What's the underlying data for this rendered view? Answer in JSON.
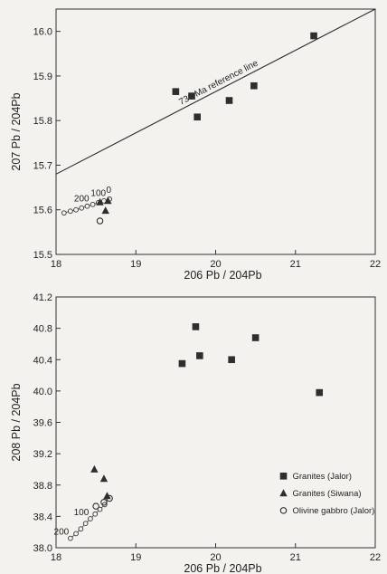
{
  "chart_data": [
    {
      "type": "scatter",
      "xlabel": "206 Pb / 204Pb",
      "ylabel": "207 Pb / 204Pb",
      "xlim": [
        18,
        22
      ],
      "ylim": [
        15.5,
        16.05
      ],
      "xticks": [
        "18",
        "19",
        "20",
        "21",
        "22"
      ],
      "yticks": [
        "15.5",
        "15.6",
        "15.7",
        "15.8",
        "15.9",
        "16.0"
      ],
      "reference_line": {
        "label": "736 Ma reference line",
        "from": [
          18,
          15.68
        ],
        "to": [
          22,
          16.05
        ]
      },
      "growth_curve": {
        "x": [
          18.1,
          18.18,
          18.25,
          18.32,
          18.39,
          18.46,
          18.53,
          18.6,
          18.67
        ],
        "y": [
          15.593,
          15.597,
          15.6,
          15.604,
          15.608,
          15.612,
          15.616,
          15.62,
          15.624
        ],
        "labels": [
          {
            "text": "200",
            "x": 18.32
          },
          {
            "text": "100",
            "x": 18.53
          },
          {
            "text": "0",
            "x": 18.66
          }
        ]
      },
      "series": [
        {
          "marker": "square",
          "x": [
            19.5,
            19.7,
            19.77,
            20.17,
            20.48,
            21.23
          ],
          "y": [
            15.865,
            15.855,
            15.808,
            15.845,
            15.878,
            15.99
          ]
        },
        {
          "marker": "triangle",
          "x": [
            18.55,
            18.62,
            18.65
          ],
          "y": [
            15.617,
            15.598,
            15.62
          ]
        },
        {
          "marker": "circle",
          "x": [
            18.55
          ],
          "y": [
            15.575
          ]
        }
      ]
    },
    {
      "type": "scatter",
      "xlabel": "206 Pb / 204Pb",
      "ylabel": "208 Pb / 204Pb",
      "xlim": [
        18,
        22
      ],
      "ylim": [
        38.0,
        41.2
      ],
      "xticks": [
        "18",
        "19",
        "20",
        "21",
        "22"
      ],
      "yticks": [
        "38.0",
        "38.4",
        "38.8",
        "39.2",
        "39.6",
        "40.0",
        "40.4",
        "40.8",
        "41.2"
      ],
      "growth_curve": {
        "x": [
          18.18,
          18.25,
          18.31,
          18.37,
          18.43,
          18.49,
          18.55,
          18.61
        ],
        "y": [
          38.12,
          38.18,
          38.24,
          38.31,
          38.37,
          38.43,
          38.49,
          38.55
        ],
        "labels": [
          {
            "text": "200",
            "x": 18.18
          },
          {
            "text": "100",
            "x": 18.43
          }
        ]
      },
      "series": [
        {
          "name": "Granites (Jalor)",
          "marker": "square",
          "x": [
            19.58,
            19.75,
            19.8,
            20.2,
            20.5,
            21.3
          ],
          "y": [
            40.35,
            40.82,
            40.45,
            40.4,
            40.68,
            39.98
          ]
        },
        {
          "name": "Granites (Siwana)",
          "marker": "triangle",
          "x": [
            18.48,
            18.6,
            18.64
          ],
          "y": [
            39.0,
            38.88,
            38.66
          ]
        },
        {
          "name": "Olivine gabbro (Jalor)",
          "marker": "circle",
          "x": [
            18.5,
            18.6,
            18.67
          ],
          "y": [
            38.53,
            38.58,
            38.63
          ]
        }
      ]
    }
  ]
}
